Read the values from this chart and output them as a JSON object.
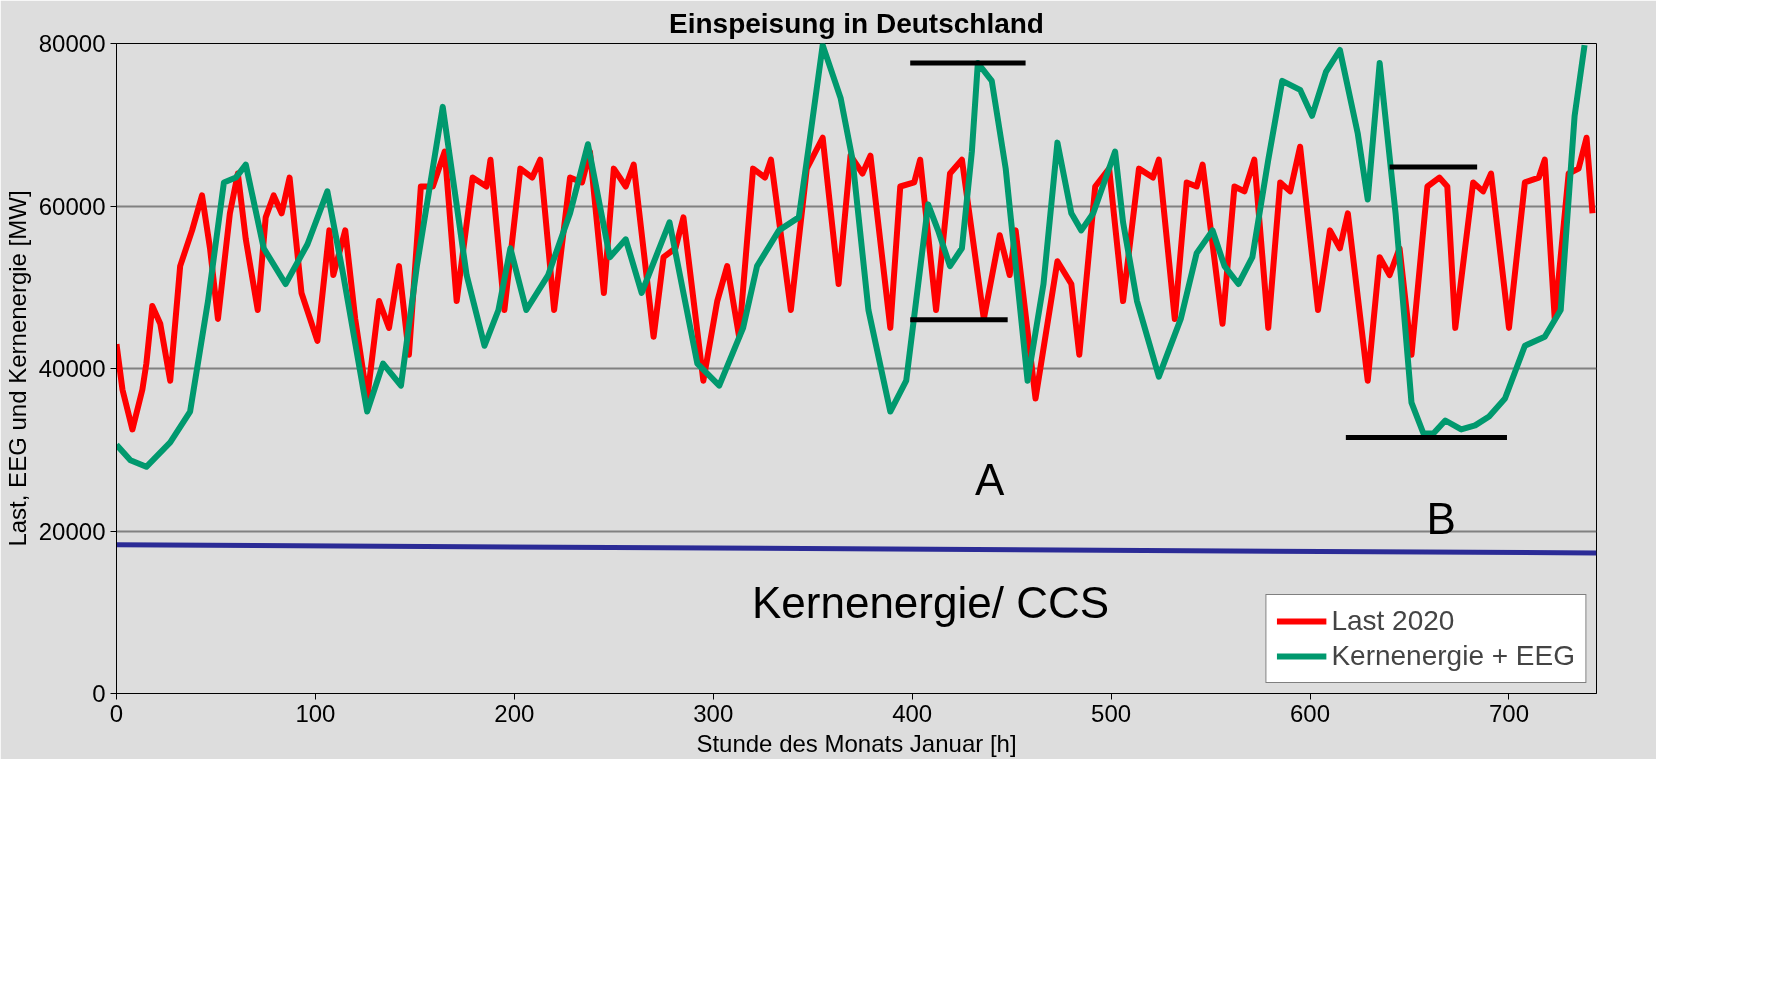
{
  "chart_data": {
    "type": "line",
    "title": "Einspeisung in Deutschland",
    "xlabel": "Stunde des Monats Januar [h]",
    "ylabel": "Last, EEG und Kernenergie [MW]",
    "xlim": [
      0,
      744
    ],
    "xticks": [
      0,
      100,
      200,
      300,
      400,
      500,
      600,
      700
    ],
    "ylim": [
      0,
      80000
    ],
    "yticks": [
      0,
      20000,
      40000,
      60000,
      80000
    ],
    "grid": "y",
    "legend": "bottom right",
    "marker": "none",
    "line_style": "solid",
    "annotations": [
      "A",
      "B",
      "Kernenergie/ CCS"
    ],
    "series": [
      {
        "name": "Last 2020",
        "color": "#ff0000",
        "x": [
          0,
          3,
          8,
          13,
          15,
          18,
          22,
          27,
          32,
          38,
          43,
          47,
          51,
          57,
          61,
          65,
          71,
          75,
          79,
          83,
          87,
          93,
          101,
          107,
          109,
          115,
          120,
          126,
          132,
          137,
          142,
          147,
          153,
          159,
          165,
          171,
          179,
          186,
          188,
          195,
          203,
          209,
          213,
          220,
          228,
          234,
          238,
          245,
          250,
          256,
          260,
          270,
          275,
          281,
          285,
          295,
          302,
          307,
          313,
          320,
          326,
          329,
          339,
          347,
          355,
          363,
          369,
          375,
          379,
          389,
          394,
          401,
          404,
          412,
          419,
          425,
          436,
          444,
          449,
          452,
          462,
          473,
          480,
          484,
          492,
          499,
          506,
          514,
          521,
          524,
          532,
          538,
          543,
          546,
          556,
          562,
          567,
          572,
          579,
          585,
          590,
          595,
          604,
          610,
          615,
          619,
          629,
          635,
          640,
          645,
          651,
          659,
          665,
          669,
          673,
          682,
          687,
          691,
          700,
          708,
          715,
          718,
          723,
          730,
          735,
          739,
          742
        ],
        "values": [
          43000,
          37400,
          32500,
          37400,
          40600,
          47700,
          45500,
          38500,
          52600,
          57000,
          61300,
          54800,
          46100,
          59100,
          64000,
          55900,
          47200,
          58600,
          61300,
          59100,
          63500,
          49300,
          43400,
          57000,
          51500,
          57000,
          46100,
          36300,
          48300,
          45000,
          52600,
          41700,
          62400,
          62400,
          66700,
          48300,
          63500,
          62400,
          65700,
          47200,
          64600,
          63500,
          65700,
          47200,
          63500,
          62900,
          66700,
          49300,
          64600,
          62400,
          65100,
          43900,
          53700,
          54800,
          58600,
          38500,
          48300,
          52600,
          43900,
          64600,
          63500,
          65700,
          47200,
          64600,
          68400,
          50400,
          66200,
          64000,
          66200,
          45000,
          62400,
          62900,
          65700,
          47200,
          64000,
          65700,
          46100,
          56400,
          51500,
          57000,
          36300,
          53200,
          50400,
          41700,
          62400,
          64600,
          48300,
          64600,
          63500,
          65700,
          46100,
          62900,
          62400,
          65100,
          45500,
          62400,
          61800,
          65700,
          45000,
          62900,
          61800,
          67300,
          47200,
          57000,
          54800,
          59100,
          38500,
          53700,
          51500,
          54800,
          41700,
          62400,
          63500,
          62400,
          45000,
          62900,
          61800,
          64000,
          45000,
          62900,
          63500,
          65700,
          46100,
          64000,
          64600,
          68400,
          59100
        ]
      },
      {
        "name": "Kernenergie + EEG",
        "color": "#00996e",
        "x": [
          0,
          7,
          15,
          27,
          37,
          46,
          54,
          60,
          65,
          74,
          85,
          96,
          106,
          114,
          126,
          134,
          143,
          151,
          164,
          176,
          185,
          192,
          198,
          206,
          217,
          228,
          237,
          248,
          256,
          264,
          278,
          292,
          303,
          315,
          322,
          333,
          343,
          348,
          355,
          364,
          370,
          378,
          389,
          397,
          408,
          413,
          419,
          425,
          430,
          433,
          440,
          447,
          458,
          466,
          473,
          480,
          485,
          491,
          502,
          506,
          513,
          524,
          535,
          543,
          551,
          557,
          564,
          571,
          579,
          586,
          595,
          601,
          608,
          615,
          624,
          629,
          635,
          643,
          651,
          657,
          662,
          668,
          676,
          683,
          690,
          698,
          708,
          718,
          726,
          733,
          738
        ],
        "values": [
          30600,
          28700,
          27900,
          30900,
          34700,
          48300,
          62900,
          63500,
          65100,
          54800,
          50400,
          55300,
          61800,
          51500,
          34700,
          40600,
          37900,
          52600,
          72200,
          51500,
          42800,
          47200,
          54800,
          47200,
          51500,
          59100,
          67600,
          53700,
          55900,
          49300,
          58000,
          40600,
          37900,
          45000,
          52600,
          57000,
          58600,
          67300,
          79800,
          73300,
          65700,
          47200,
          34700,
          38500,
          60200,
          57000,
          52600,
          54800,
          66700,
          77600,
          75400,
          64600,
          38500,
          50400,
          67800,
          59100,
          57000,
          59100,
          66700,
          58000,
          48300,
          39000,
          46100,
          54200,
          57000,
          52600,
          50400,
          53700,
          65700,
          75400,
          74300,
          71100,
          76500,
          79200,
          68900,
          60800,
          77600,
          59100,
          35800,
          32000,
          32000,
          33600,
          32500,
          33000,
          34100,
          36300,
          42800,
          43900,
          47200,
          71100,
          79800
        ]
      },
      {
        "color": "#2b2b96",
        "x": [
          0,
          744
        ],
        "values": [
          18300,
          17300
        ]
      },
      {
        "color": "#000000",
        "x": [
          399,
          457
        ],
        "values": [
          77600,
          77600
        ]
      },
      {
        "color": "#000000",
        "x": [
          399,
          448
        ],
        "values": [
          46000,
          46000
        ]
      },
      {
        "color": "#000000",
        "x": [
          640,
          684
        ],
        "values": [
          64800,
          64800
        ]
      },
      {
        "color": "#000000",
        "x": [
          618,
          699
        ],
        "values": [
          31500,
          31500
        ]
      }
    ]
  }
}
